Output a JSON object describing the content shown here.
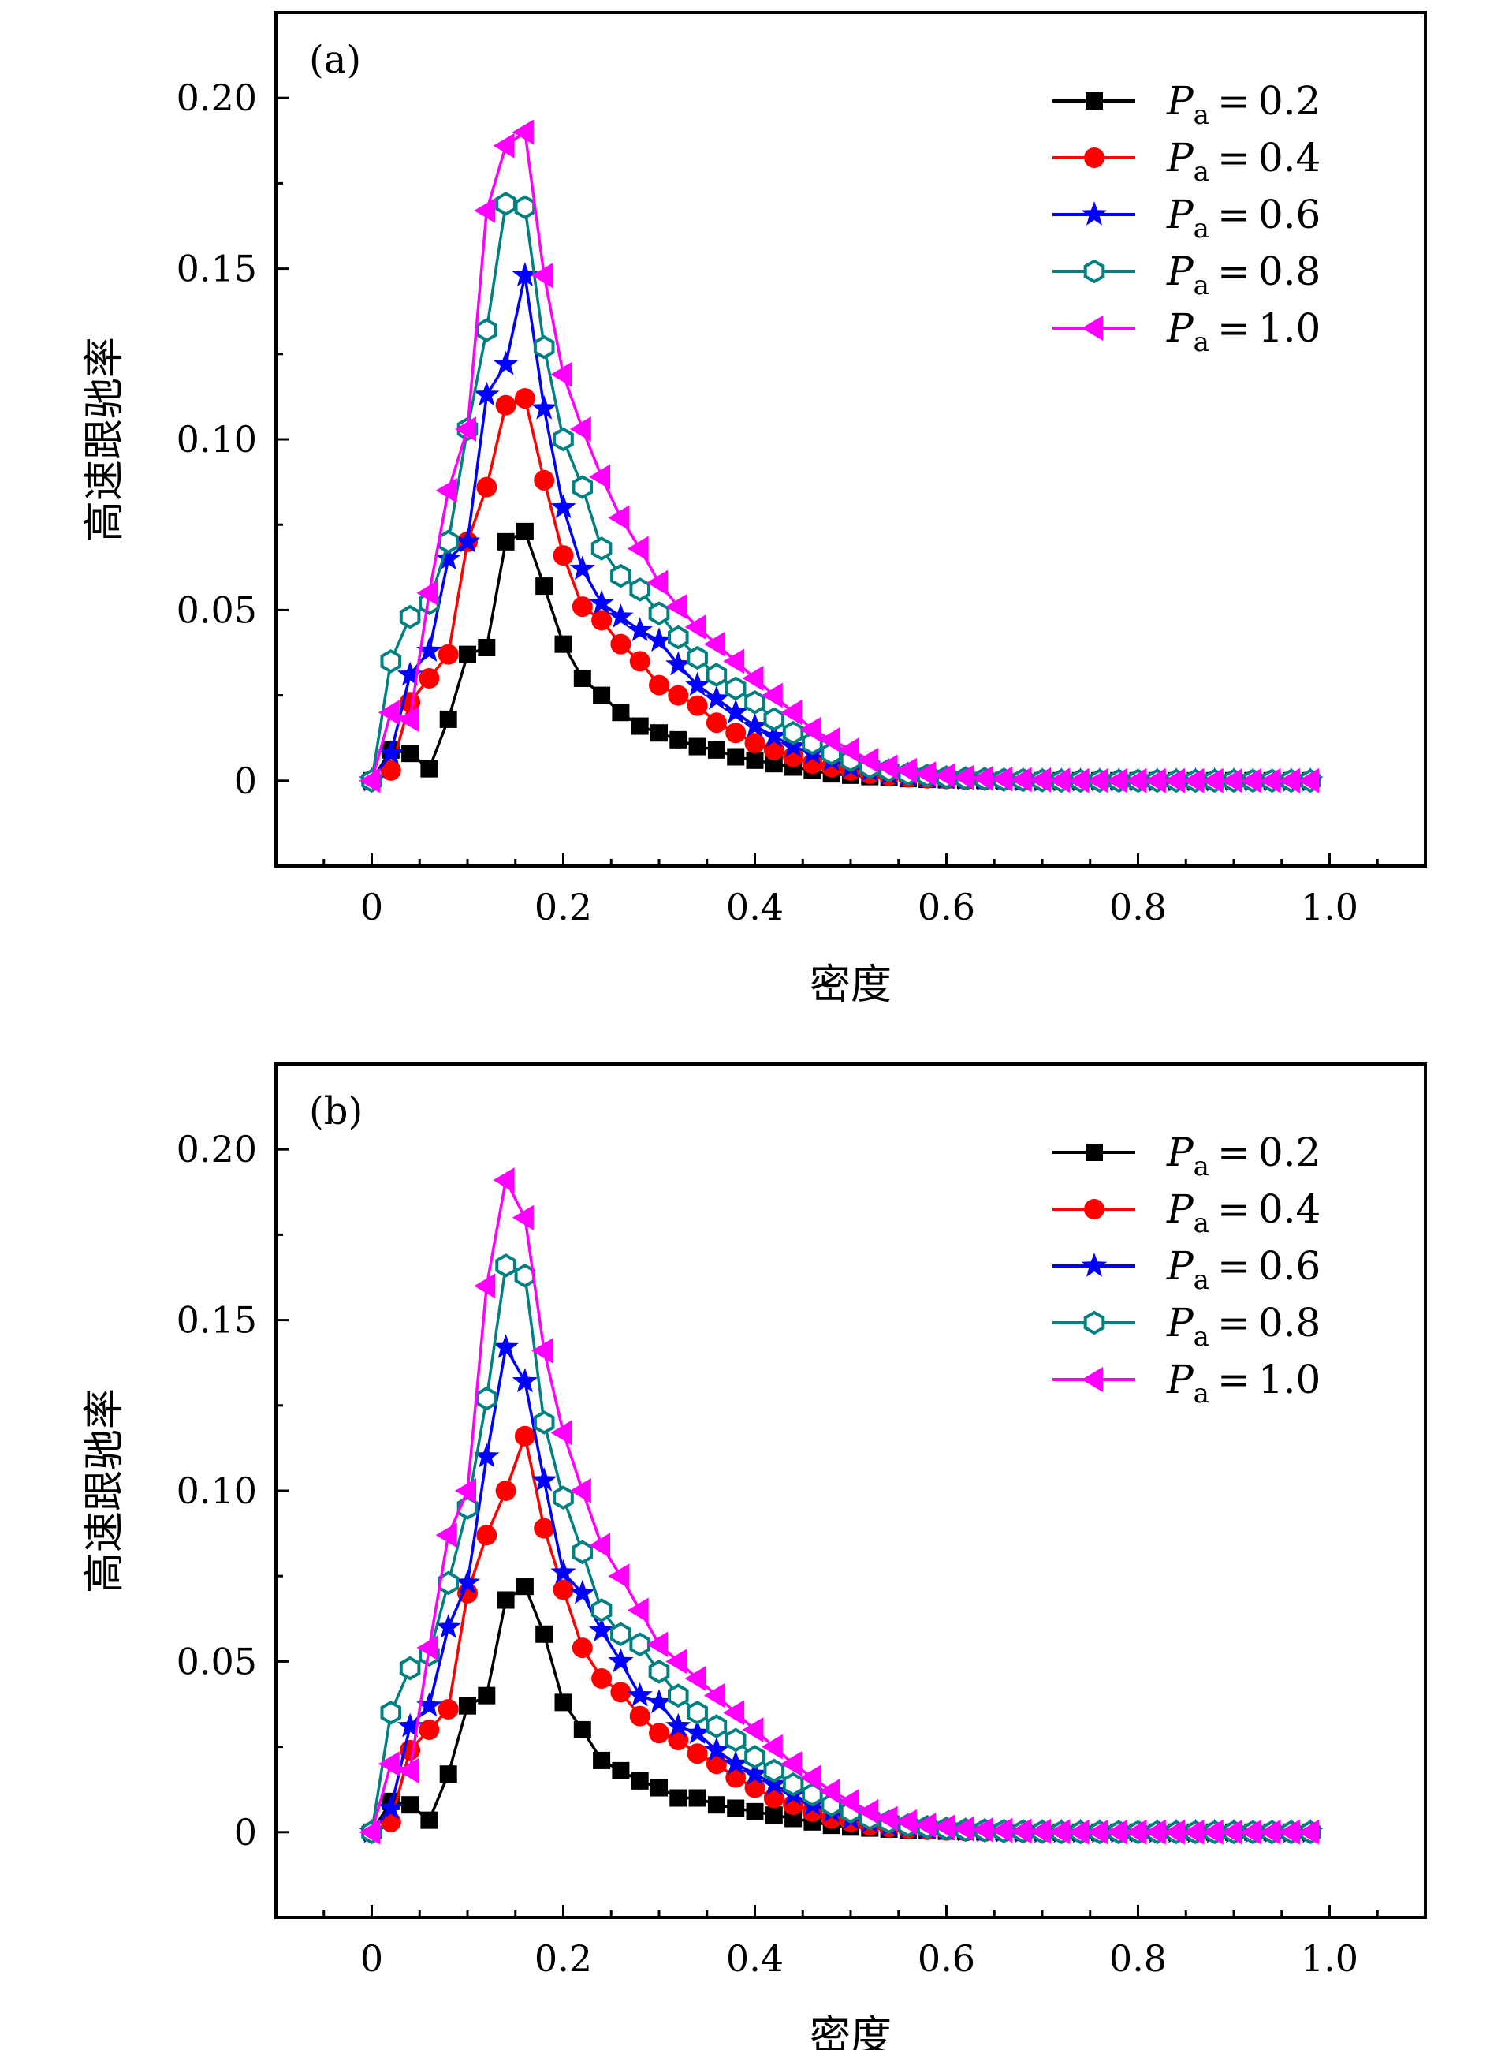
{
  "chart_data": [
    {
      "type": "line",
      "panel_label": "(a)",
      "xlabel": "密度",
      "ylabel": "高速跟驰率",
      "xlim": [
        -0.1,
        1.1
      ],
      "ylim": [
        -0.025,
        0.225
      ],
      "xticks": [
        0,
        0.2,
        0.4,
        0.6,
        0.8,
        1.0
      ],
      "xtick_labels": [
        "0",
        "0.2",
        "0.4",
        "0.6",
        "0.8",
        "1.0"
      ],
      "yticks": [
        0,
        0.05,
        0.1,
        0.15,
        0.2
      ],
      "ytick_labels": [
        "0",
        "0.05",
        "0.10",
        "0.15",
        "0.20"
      ],
      "legend_position": "top-right",
      "x": [
        0,
        0.02,
        0.04,
        0.06,
        0.08,
        0.1,
        0.12,
        0.14,
        0.16,
        0.18,
        0.2,
        0.22,
        0.24,
        0.26,
        0.28,
        0.3,
        0.32,
        0.34,
        0.36,
        0.38,
        0.4,
        0.42,
        0.44,
        0.46,
        0.48,
        0.5,
        0.52,
        0.54,
        0.56,
        0.58,
        0.6,
        0.62,
        0.64,
        0.66,
        0.68,
        0.7,
        0.72,
        0.74,
        0.76,
        0.78,
        0.8,
        0.82,
        0.84,
        0.86,
        0.88,
        0.9,
        0.92,
        0.94,
        0.96,
        0.98
      ],
      "series": [
        {
          "name": "0.2",
          "color": "#000000",
          "marker": "square",
          "values": [
            0,
            0.009,
            0.008,
            0.0035,
            0.018,
            0.037,
            0.039,
            0.07,
            0.073,
            0.057,
            0.04,
            0.03,
            0.025,
            0.02,
            0.016,
            0.014,
            0.012,
            0.01,
            0.009,
            0.007,
            0.006,
            0.005,
            0.004,
            0.003,
            0.002,
            0.0016,
            0.0012,
            0.0009,
            0.0006,
            0.0004,
            0.0003,
            0.0002,
            0.0001,
            0.0001,
            0,
            0,
            0,
            0,
            0,
            0,
            0,
            0,
            0,
            0,
            0,
            0,
            0,
            0,
            0,
            0
          ]
        },
        {
          "name": "0.4",
          "color": "#ff0000",
          "marker": "circle",
          "values": [
            0,
            0.003,
            0.023,
            0.03,
            0.037,
            0.07,
            0.086,
            0.11,
            0.112,
            0.088,
            0.066,
            0.051,
            0.047,
            0.04,
            0.035,
            0.028,
            0.025,
            0.022,
            0.017,
            0.014,
            0.011,
            0.009,
            0.007,
            0.005,
            0.004,
            0.003,
            0.002,
            0.0015,
            0.001,
            0.0007,
            0.0005,
            0.0003,
            0.0002,
            0.0001,
            0,
            0,
            0,
            0,
            0,
            0,
            0,
            0,
            0,
            0,
            0,
            0,
            0,
            0,
            0,
            0
          ]
        },
        {
          "name": "0.6",
          "color": "#0000ff",
          "marker": "star",
          "values": [
            0,
            0.008,
            0.031,
            0.038,
            0.065,
            0.07,
            0.113,
            0.122,
            0.148,
            0.109,
            0.08,
            0.062,
            0.052,
            0.048,
            0.044,
            0.041,
            0.034,
            0.028,
            0.024,
            0.02,
            0.016,
            0.013,
            0.01,
            0.008,
            0.006,
            0.004,
            0.003,
            0.002,
            0.0015,
            0.001,
            0.0007,
            0.0005,
            0.0003,
            0.0002,
            0.0001,
            0,
            0,
            0,
            0,
            0,
            0,
            0,
            0,
            0,
            0,
            0,
            0,
            0,
            0,
            0
          ]
        },
        {
          "name": "0.8",
          "color": "#008080",
          "marker": "hexagon",
          "values": [
            0,
            0.035,
            0.048,
            0.052,
            0.07,
            0.103,
            0.132,
            0.169,
            0.168,
            0.127,
            0.1,
            0.086,
            0.068,
            0.06,
            0.056,
            0.049,
            0.042,
            0.036,
            0.031,
            0.027,
            0.023,
            0.018,
            0.014,
            0.011,
            0.008,
            0.006,
            0.004,
            0.003,
            0.002,
            0.0015,
            0.001,
            0.0007,
            0.0005,
            0.0003,
            0.0002,
            0.0001,
            0,
            0,
            0,
            0,
            0,
            0,
            0,
            0,
            0,
            0,
            0,
            0,
            0,
            0
          ]
        },
        {
          "name": "1.0",
          "color": "#ff00ff",
          "marker": "left-triangle",
          "values": [
            0,
            0.02,
            0.018,
            0.055,
            0.085,
            0.103,
            0.167,
            0.186,
            0.19,
            0.148,
            0.119,
            0.103,
            0.089,
            0.077,
            0.068,
            0.058,
            0.051,
            0.045,
            0.04,
            0.035,
            0.03,
            0.025,
            0.02,
            0.015,
            0.012,
            0.009,
            0.006,
            0.004,
            0.003,
            0.002,
            0.0015,
            0.001,
            0.0007,
            0.0005,
            0.0003,
            0.0002,
            0.0001,
            0,
            0,
            0,
            0,
            0,
            0,
            0,
            0,
            0,
            0,
            0,
            0,
            0
          ]
        }
      ]
    },
    {
      "type": "line",
      "panel_label": "(b)",
      "xlabel": "密度",
      "ylabel": "高速跟驰率",
      "xlim": [
        -0.1,
        1.1
      ],
      "ylim": [
        -0.025,
        0.225
      ],
      "xticks": [
        0,
        0.2,
        0.4,
        0.6,
        0.8,
        1.0
      ],
      "xtick_labels": [
        "0",
        "0.2",
        "0.4",
        "0.6",
        "0.8",
        "1.0"
      ],
      "yticks": [
        0,
        0.05,
        0.1,
        0.15,
        0.2
      ],
      "ytick_labels": [
        "0",
        "0.05",
        "0.10",
        "0.15",
        "0.20"
      ],
      "legend_position": "top-right",
      "x": [
        0,
        0.02,
        0.04,
        0.06,
        0.08,
        0.1,
        0.12,
        0.14,
        0.16,
        0.18,
        0.2,
        0.22,
        0.24,
        0.26,
        0.28,
        0.3,
        0.32,
        0.34,
        0.36,
        0.38,
        0.4,
        0.42,
        0.44,
        0.46,
        0.48,
        0.5,
        0.52,
        0.54,
        0.56,
        0.58,
        0.6,
        0.62,
        0.64,
        0.66,
        0.68,
        0.7,
        0.72,
        0.74,
        0.76,
        0.78,
        0.8,
        0.82,
        0.84,
        0.86,
        0.88,
        0.9,
        0.92,
        0.94,
        0.96,
        0.98
      ],
      "series": [
        {
          "name": "0.2",
          "color": "#000000",
          "marker": "square",
          "values": [
            0,
            0.009,
            0.008,
            0.0035,
            0.017,
            0.037,
            0.04,
            0.068,
            0.072,
            0.058,
            0.038,
            0.03,
            0.021,
            0.018,
            0.015,
            0.013,
            0.01,
            0.01,
            0.008,
            0.007,
            0.006,
            0.005,
            0.004,
            0.003,
            0.002,
            0.0015,
            0.0012,
            0.0009,
            0.0006,
            0.0004,
            0.0003,
            0.0002,
            0.0001,
            0.0001,
            0,
            0,
            0,
            0,
            0,
            0,
            0,
            0,
            0,
            0,
            0,
            0,
            0,
            0,
            0,
            0
          ]
        },
        {
          "name": "0.4",
          "color": "#ff0000",
          "marker": "circle",
          "values": [
            0,
            0.003,
            0.024,
            0.03,
            0.036,
            0.07,
            0.087,
            0.1,
            0.116,
            0.089,
            0.071,
            0.054,
            0.045,
            0.041,
            0.034,
            0.029,
            0.027,
            0.023,
            0.02,
            0.016,
            0.013,
            0.01,
            0.008,
            0.006,
            0.004,
            0.003,
            0.002,
            0.0015,
            0.001,
            0.0007,
            0.0005,
            0.0003,
            0.0002,
            0.0001,
            0,
            0,
            0,
            0,
            0,
            0,
            0,
            0,
            0,
            0,
            0,
            0,
            0,
            0,
            0,
            0
          ]
        },
        {
          "name": "0.6",
          "color": "#0000ff",
          "marker": "star",
          "values": [
            0,
            0.007,
            0.031,
            0.037,
            0.06,
            0.073,
            0.11,
            0.142,
            0.132,
            0.103,
            0.076,
            0.07,
            0.059,
            0.05,
            0.04,
            0.038,
            0.031,
            0.029,
            0.024,
            0.02,
            0.017,
            0.014,
            0.011,
            0.008,
            0.006,
            0.004,
            0.003,
            0.002,
            0.0015,
            0.001,
            0.0007,
            0.0005,
            0.0003,
            0.0002,
            0.0001,
            0,
            0,
            0,
            0,
            0,
            0,
            0,
            0,
            0,
            0,
            0,
            0,
            0,
            0,
            0
          ]
        },
        {
          "name": "0.8",
          "color": "#008080",
          "marker": "hexagon",
          "values": [
            0,
            0.035,
            0.048,
            0.052,
            0.073,
            0.095,
            0.127,
            0.166,
            0.163,
            0.12,
            0.098,
            0.082,
            0.065,
            0.058,
            0.055,
            0.047,
            0.04,
            0.035,
            0.031,
            0.027,
            0.022,
            0.018,
            0.014,
            0.011,
            0.008,
            0.006,
            0.004,
            0.003,
            0.002,
            0.0015,
            0.001,
            0.0007,
            0.0005,
            0.0003,
            0.0002,
            0.0001,
            0,
            0,
            0,
            0,
            0,
            0,
            0,
            0,
            0,
            0,
            0,
            0,
            0,
            0
          ]
        },
        {
          "name": "1.0",
          "color": "#ff00ff",
          "marker": "left-triangle",
          "values": [
            0,
            0.02,
            0.018,
            0.054,
            0.087,
            0.1,
            0.16,
            0.191,
            0.18,
            0.141,
            0.117,
            0.1,
            0.084,
            0.075,
            0.065,
            0.055,
            0.05,
            0.045,
            0.04,
            0.035,
            0.03,
            0.025,
            0.02,
            0.016,
            0.012,
            0.009,
            0.006,
            0.004,
            0.003,
            0.002,
            0.0015,
            0.001,
            0.0007,
            0.0005,
            0.0003,
            0.0002,
            0.0001,
            0,
            0,
            0,
            0,
            0,
            0,
            0,
            0,
            0,
            0,
            0,
            0,
            0
          ]
        }
      ]
    }
  ],
  "legend": {
    "symbol": "P",
    "subscript": "a",
    "equals": "="
  }
}
